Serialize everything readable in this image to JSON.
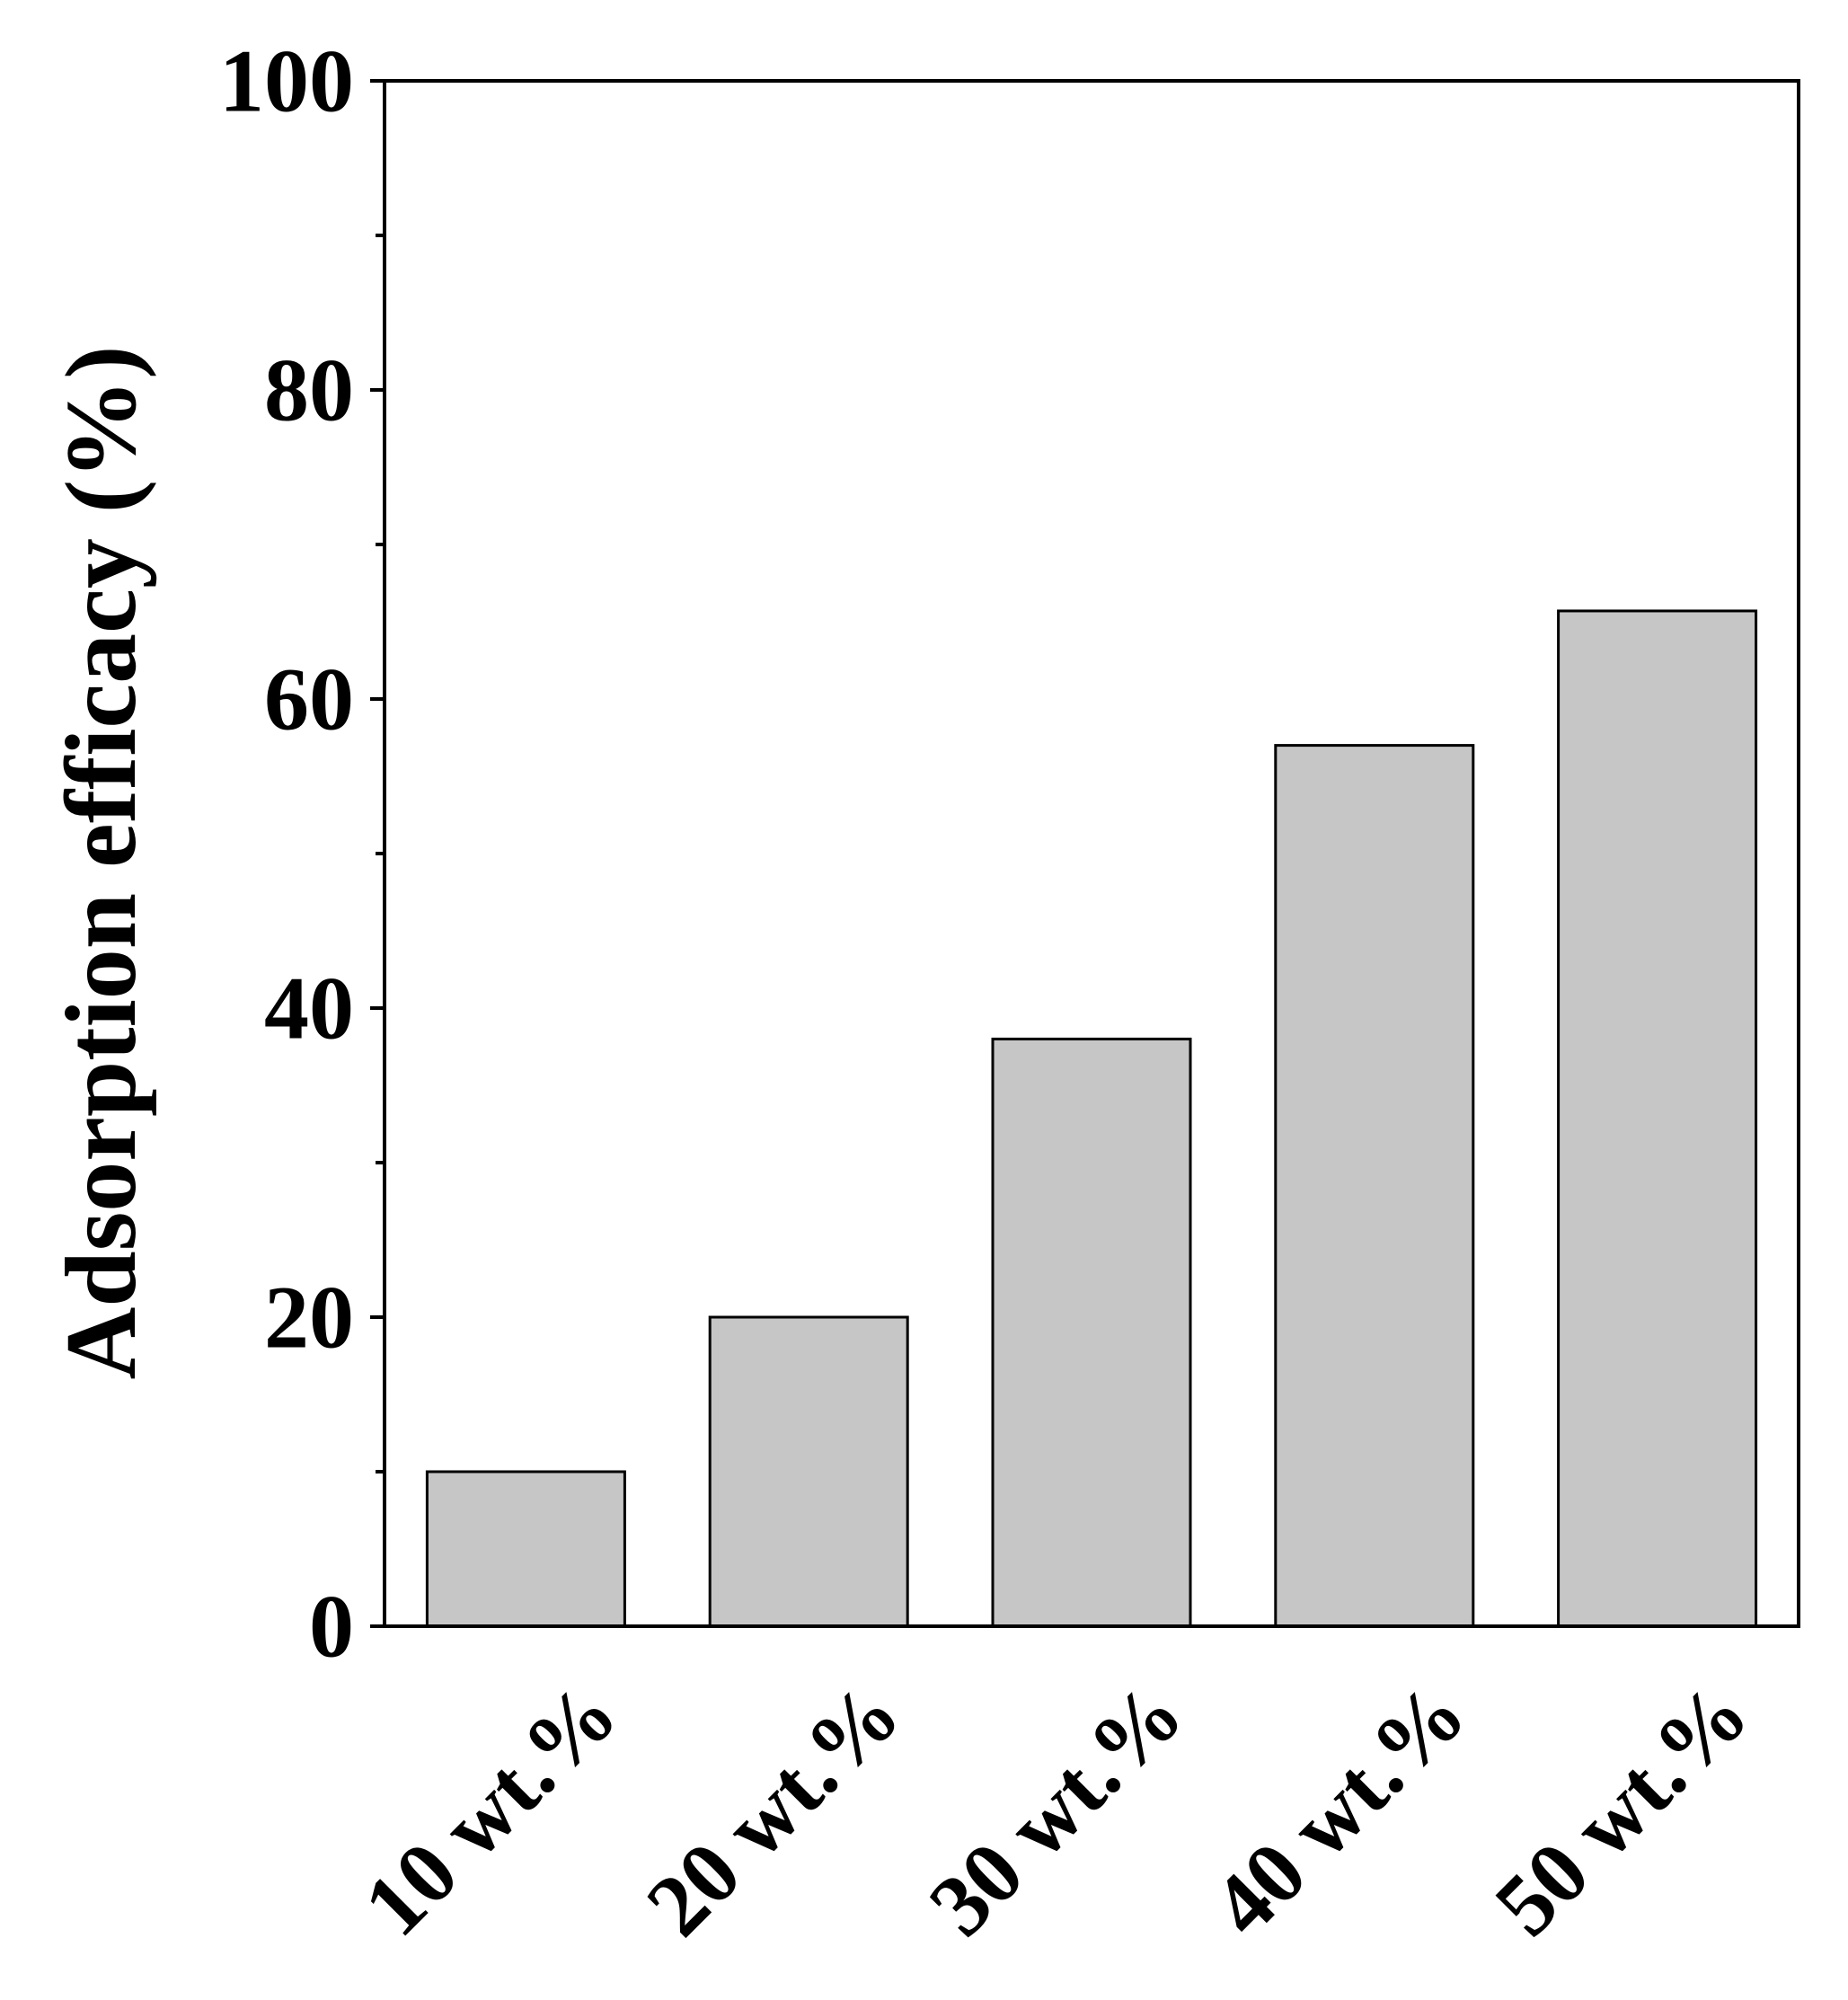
{
  "chart_data": {
    "type": "bar",
    "title": "",
    "xlabel": "",
    "ylabel": "Adsorption efficacy (%)",
    "categories": [
      "10 wt.%",
      "20 wt.%",
      "30 wt.%",
      "40 wt.%",
      "50 wt.%"
    ],
    "values": [
      10,
      20,
      38,
      57,
      65.7
    ],
    "ylim": [
      0,
      100
    ],
    "yticks": [
      0,
      20,
      40,
      60,
      80,
      100
    ],
    "yticks_minor": [
      10,
      30,
      50,
      70,
      90
    ],
    "legend": "none",
    "grid": false,
    "colors": {
      "bar_fill": "#c6c6c6",
      "bar_stroke": "#000000",
      "axis": "#000000"
    }
  }
}
